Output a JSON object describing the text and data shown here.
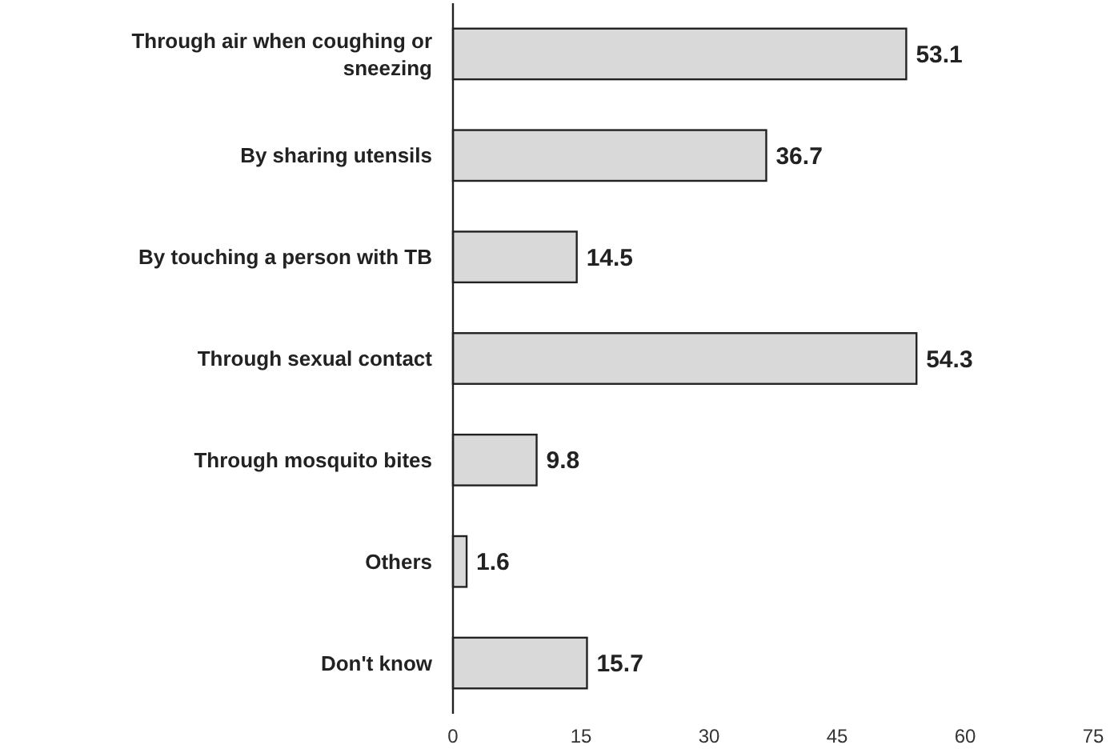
{
  "chart_data": {
    "type": "bar",
    "orientation": "horizontal",
    "categories": [
      "Through air when coughing or sneezing",
      "By sharing utensils",
      "By touching a person with TB",
      "Through sexual contact",
      "Through mosquito bites",
      "Others",
      "Don't know"
    ],
    "values": [
      53.1,
      36.7,
      14.5,
      54.3,
      9.8,
      1.6,
      15.7
    ],
    "color": "#d9d9d9",
    "xlim": [
      0,
      75
    ],
    "xticks": [
      0,
      15,
      30,
      45,
      60,
      75
    ],
    "data_labels": true
  }
}
